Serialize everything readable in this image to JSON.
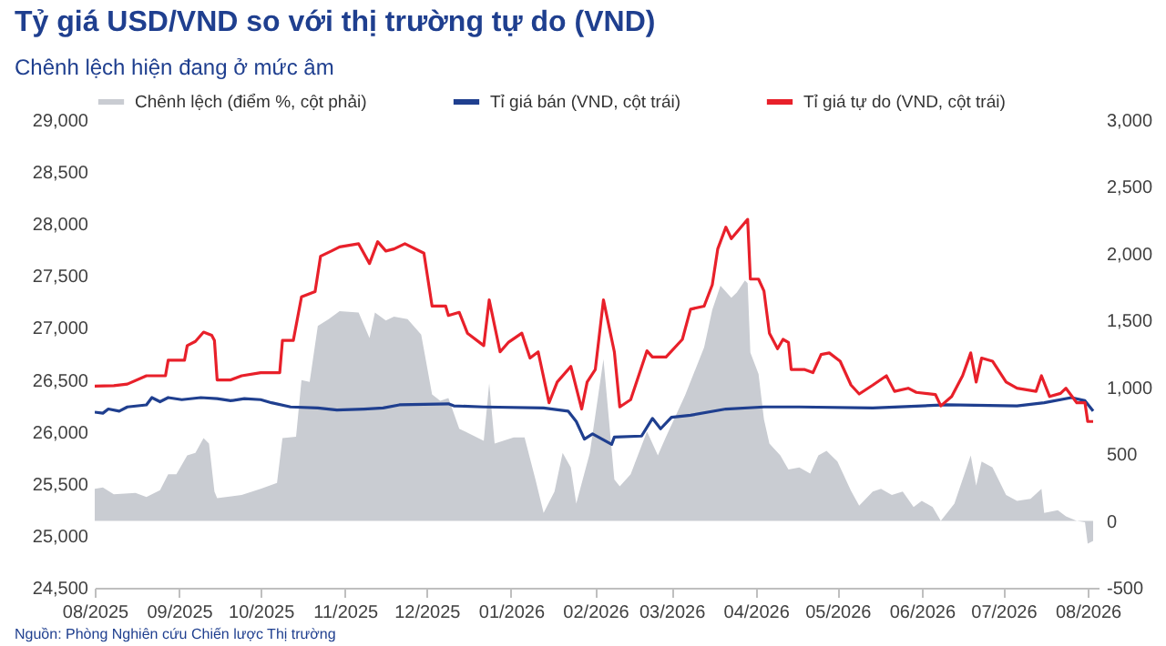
{
  "chart_data": {
    "type": "line",
    "title": "Tỷ giá USD/VND so với thị trường tự do (VND)",
    "subtitle": "Chênh lệch hiện đang ở mức âm",
    "annotations": [
      "Nguồn: Phòng Nghiên cứu Chiến lược Thị trường"
    ],
    "legend": "top",
    "xlim": [
      "2025-08-01",
      "2026-08-05"
    ],
    "xticks": [
      {
        "value": "2025-08-01",
        "label": "08/2025"
      },
      {
        "value": "2025-09-01",
        "label": "09/2025"
      },
      {
        "value": "2025-10-01",
        "label": "10/2025"
      },
      {
        "value": "2025-11-01",
        "label": "11/2025"
      },
      {
        "value": "2025-12-01",
        "label": "12/2025"
      },
      {
        "value": "2026-01-01",
        "label": "01/2026"
      },
      {
        "value": "2026-02-01",
        "label": "02/2026"
      },
      {
        "value": "2026-03-01",
        "label": "03/2026"
      },
      {
        "value": "2026-04-01",
        "label": "04/2026"
      },
      {
        "value": "2026-05-01",
        "label": "05/2026"
      },
      {
        "value": "2026-06-01",
        "label": "06/2026"
      },
      {
        "value": "2026-07-01",
        "label": "07/2026"
      },
      {
        "value": "2026-08-01",
        "label": "08/2026"
      }
    ],
    "ylim": [
      24500,
      29000
    ],
    "yticks": [
      {
        "value": 24500,
        "label": "24,500"
      },
      {
        "value": 25000,
        "label": "25,000"
      },
      {
        "value": 25500,
        "label": "25,500"
      },
      {
        "value": 26000,
        "label": "26,000"
      },
      {
        "value": 26500,
        "label": "26,500"
      },
      {
        "value": 27000,
        "label": "27,000"
      },
      {
        "value": 27500,
        "label": "27,500"
      },
      {
        "value": 28000,
        "label": "28,000"
      },
      {
        "value": 28500,
        "label": "28,500"
      },
      {
        "value": 29000,
        "label": "29,000"
      }
    ],
    "y2lim": [
      -500,
      3000
    ],
    "y2ticks": [
      {
        "value": -500,
        "label": "-500"
      },
      {
        "value": 0,
        "label": "0"
      },
      {
        "value": 500,
        "label": "500"
      },
      {
        "value": 1000,
        "label": "1,000"
      },
      {
        "value": 1500,
        "label": "1,500"
      },
      {
        "value": 2000,
        "label": "2,000"
      },
      {
        "value": 2500,
        "label": "2,500"
      },
      {
        "value": 3000,
        "label": "3,000"
      }
    ],
    "series": [
      {
        "name": "Chênh lệch (điểm %, cột phải)",
        "type": "area",
        "axis": "y2",
        "color": "#c9ccd2",
        "x": [
          "2025-08-01",
          "2025-08-04",
          "2025-08-08",
          "2025-08-16",
          "2025-08-20",
          "2025-08-25",
          "2025-08-28",
          "2025-08-31",
          "2025-09-04",
          "2025-09-07",
          "2025-09-10",
          "2025-09-12",
          "2025-09-14",
          "2025-09-15",
          "2025-09-24",
          "2025-10-01",
          "2025-10-07",
          "2025-10-09",
          "2025-10-14",
          "2025-10-16",
          "2025-10-19",
          "2025-10-22",
          "2025-10-26",
          "2025-10-30",
          "2025-11-06",
          "2025-11-10",
          "2025-11-12",
          "2025-11-16",
          "2025-11-19",
          "2025-11-24",
          "2025-11-29",
          "2025-12-03",
          "2025-12-06",
          "2025-12-09",
          "2025-12-13",
          "2025-12-22",
          "2025-12-24",
          "2025-12-26",
          "2026-01-02",
          "2026-01-06",
          "2026-01-10",
          "2026-01-13",
          "2026-01-17",
          "2026-01-20",
          "2026-01-23",
          "2026-01-25",
          "2026-01-30",
          "2026-02-04",
          "2026-02-08",
          "2026-02-10",
          "2026-02-14",
          "2026-02-20",
          "2026-02-24",
          "2026-02-27",
          "2026-03-06",
          "2026-03-13",
          "2026-03-16",
          "2026-03-19",
          "2026-03-23",
          "2026-03-25",
          "2026-03-28",
          "2026-03-29",
          "2026-03-30",
          "2026-04-02",
          "2026-04-04",
          "2026-04-06",
          "2026-04-10",
          "2026-04-13",
          "2026-04-17",
          "2026-04-21",
          "2026-04-24",
          "2026-04-27",
          "2026-05-01",
          "2026-05-06",
          "2026-05-09",
          "2026-05-14",
          "2026-05-17",
          "2026-05-21",
          "2026-05-25",
          "2026-05-29",
          "2026-06-01",
          "2026-06-05",
          "2026-06-08",
          "2026-06-13",
          "2026-06-16",
          "2026-06-19",
          "2026-06-21",
          "2026-06-23",
          "2026-06-27",
          "2026-07-02",
          "2026-07-06",
          "2026-07-11",
          "2026-07-15",
          "2026-07-16",
          "2026-07-21",
          "2026-07-24",
          "2026-07-28",
          "2026-07-31",
          "2026-08-01",
          "2026-08-03"
        ],
        "values": [
          240,
          250,
          200,
          210,
          180,
          230,
          350,
          350,
          490,
          510,
          620,
          580,
          220,
          170,
          195,
          240,
          285,
          620,
          630,
          1055,
          1040,
          1460,
          1510,
          1570,
          1560,
          1370,
          1560,
          1500,
          1530,
          1510,
          1395,
          947,
          900,
          920,
          690,
          600,
          1030,
          580,
          625,
          625,
          310,
          60,
          220,
          510,
          400,
          130,
          510,
          1210,
          310,
          260,
          350,
          670,
          490,
          630,
          940,
          1300,
          1580,
          1760,
          1670,
          1710,
          1800,
          1780,
          1260,
          1100,
          760,
          580,
          490,
          385,
          400,
          355,
          490,
          525,
          445,
          225,
          115,
          220,
          240,
          195,
          220,
          105,
          150,
          105,
          0,
          130,
          310,
          490,
          265,
          445,
          400,
          195,
          150,
          165,
          240,
          60,
          80,
          35,
          0,
          -10,
          -170,
          -150
        ]
      },
      {
        "name": "Tỉ giá bán (VND, cột trái)",
        "color": "#1f3f8f",
        "x": [
          "2025-08-01",
          "2025-08-04",
          "2025-08-06",
          "2025-08-10",
          "2025-08-13",
          "2025-08-20",
          "2025-08-22",
          "2025-08-25",
          "2025-08-28",
          "2025-09-02",
          "2025-09-09",
          "2025-09-15",
          "2025-09-20",
          "2025-09-25",
          "2025-10-01",
          "2025-10-05",
          "2025-10-12",
          "2025-10-22",
          "2025-10-29",
          "2025-11-08",
          "2025-11-15",
          "2025-11-21",
          "2025-12-09",
          "2025-12-11",
          "2025-12-22",
          "2026-01-13",
          "2026-01-22",
          "2026-01-25",
          "2026-01-28",
          "2026-01-31",
          "2026-02-07",
          "2026-02-08",
          "2026-02-18",
          "2026-02-22",
          "2026-02-25",
          "2026-03-01",
          "2026-03-08",
          "2026-03-21",
          "2026-04-04",
          "2026-04-17",
          "2026-05-14",
          "2026-06-10",
          "2026-07-06",
          "2026-07-16",
          "2026-07-26",
          "2026-07-31",
          "2026-08-03"
        ],
        "values": [
          26190,
          26180,
          26220,
          26200,
          26240,
          26260,
          26330,
          26290,
          26330,
          26310,
          26330,
          26320,
          26300,
          26320,
          26310,
          26280,
          26240,
          26230,
          26210,
          26220,
          26230,
          26260,
          26270,
          26250,
          26240,
          26230,
          26200,
          26100,
          25930,
          25980,
          25880,
          25950,
          25960,
          26130,
          26030,
          26140,
          26160,
          26220,
          26240,
          26240,
          26230,
          26260,
          26250,
          26280,
          26330,
          26300,
          26200
        ]
      },
      {
        "name": "Tỉ giá tự do (VND, cột trái)",
        "color": "#e8202a",
        "x": [
          "2025-08-01",
          "2025-08-08",
          "2025-08-13",
          "2025-08-20",
          "2025-08-27",
          "2025-08-28",
          "2025-09-03",
          "2025-09-04",
          "2025-09-07",
          "2025-09-10",
          "2025-09-13",
          "2025-09-14",
          "2025-09-15",
          "2025-09-20",
          "2025-09-24",
          "2025-10-01",
          "2025-10-08",
          "2025-10-09",
          "2025-10-13",
          "2025-10-16",
          "2025-10-21",
          "2025-10-23",
          "2025-10-27",
          "2025-10-30",
          "2025-11-06",
          "2025-11-10",
          "2025-11-13",
          "2025-11-16",
          "2025-11-19",
          "2025-11-23",
          "2025-11-30",
          "2025-12-03",
          "2025-12-08",
          "2025-12-09",
          "2025-12-13",
          "2025-12-16",
          "2025-12-22",
          "2025-12-24",
          "2025-12-28",
          "2025-12-31",
          "2026-01-05",
          "2026-01-08",
          "2026-01-11",
          "2026-01-15",
          "2026-01-18",
          "2026-01-23",
          "2026-01-27",
          "2026-01-29",
          "2026-02-01",
          "2026-02-04",
          "2026-02-08",
          "2026-02-10",
          "2026-02-14",
          "2026-02-20",
          "2026-02-22",
          "2026-02-27",
          "2026-03-05",
          "2026-03-08",
          "2026-03-13",
          "2026-03-16",
          "2026-03-18",
          "2026-03-21",
          "2026-03-23",
          "2026-03-29",
          "2026-03-30",
          "2026-04-02",
          "2026-04-04",
          "2026-04-06",
          "2026-04-09",
          "2026-04-11",
          "2026-04-13",
          "2026-04-14",
          "2026-04-19",
          "2026-04-22",
          "2026-04-25",
          "2026-04-28",
          "2026-05-02",
          "2026-05-06",
          "2026-05-09",
          "2026-05-14",
          "2026-05-19",
          "2026-05-22",
          "2026-05-27",
          "2026-05-30",
          "2026-06-06",
          "2026-06-08",
          "2026-06-12",
          "2026-06-16",
          "2026-06-19",
          "2026-06-21",
          "2026-06-23",
          "2026-06-27",
          "2026-07-02",
          "2026-07-06",
          "2026-07-13",
          "2026-07-15",
          "2026-07-18",
          "2026-07-22",
          "2026-07-24",
          "2026-07-28",
          "2026-07-31",
          "2026-08-01",
          "2026-08-03"
        ],
        "values": [
          26440,
          26445,
          26460,
          26540,
          26540,
          26690,
          26690,
          26830,
          26870,
          26960,
          26930,
          26880,
          26500,
          26500,
          26540,
          26570,
          26570,
          26880,
          26880,
          27300,
          27350,
          27690,
          27740,
          27780,
          27810,
          27620,
          27830,
          27740,
          27760,
          27810,
          27720,
          27210,
          27210,
          27120,
          27150,
          26950,
          26830,
          27270,
          26770,
          26860,
          26950,
          26710,
          26770,
          26280,
          26480,
          26630,
          26220,
          26480,
          26600,
          27270,
          26770,
          26240,
          26310,
          26780,
          26720,
          26720,
          26890,
          27180,
          27210,
          27415,
          27760,
          27970,
          27860,
          28045,
          27470,
          27470,
          27355,
          26950,
          26800,
          26890,
          26860,
          26600,
          26600,
          26570,
          26745,
          26760,
          26680,
          26450,
          26365,
          26450,
          26540,
          26390,
          26420,
          26380,
          26360,
          26250,
          26340,
          26540,
          26760,
          26480,
          26710,
          26680,
          26480,
          26420,
          26390,
          26540,
          26340,
          26370,
          26420,
          26280,
          26280,
          26100,
          26100
        ]
      }
    ]
  }
}
